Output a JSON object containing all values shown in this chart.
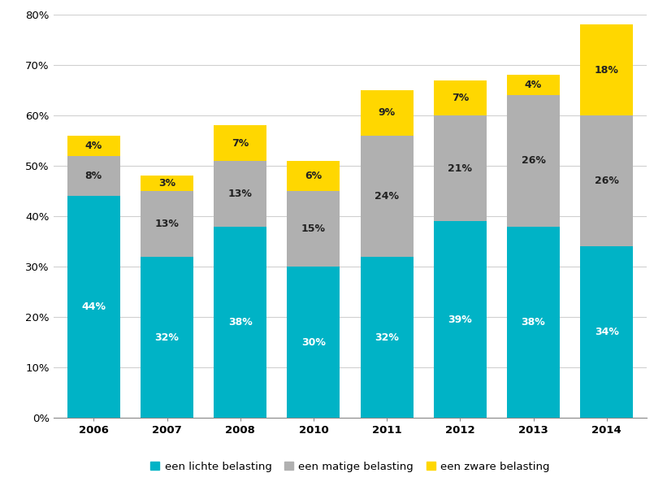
{
  "years": [
    "2006",
    "2007",
    "2008",
    "2010",
    "2011",
    "2012",
    "2013",
    "2014"
  ],
  "licht": [
    44,
    32,
    38,
    30,
    32,
    39,
    38,
    34
  ],
  "matig": [
    8,
    13,
    13,
    15,
    24,
    21,
    26,
    26
  ],
  "zwaar": [
    4,
    3,
    7,
    6,
    9,
    7,
    4,
    18
  ],
  "color_licht": "#00B3C6",
  "color_matig": "#B0B0B0",
  "color_zwaar": "#FFD700",
  "bar_width": 0.72,
  "ylim": [
    0,
    80
  ],
  "yticks": [
    0,
    10,
    20,
    30,
    40,
    50,
    60,
    70,
    80
  ],
  "legend_labels": [
    "een lichte belasting",
    "een matige belasting",
    "een zware belasting"
  ],
  "label_fontsize": 9,
  "tick_fontsize": 9.5,
  "legend_fontsize": 9.5,
  "background_color": "#FFFFFF",
  "grid_color": "#D0D0D0"
}
